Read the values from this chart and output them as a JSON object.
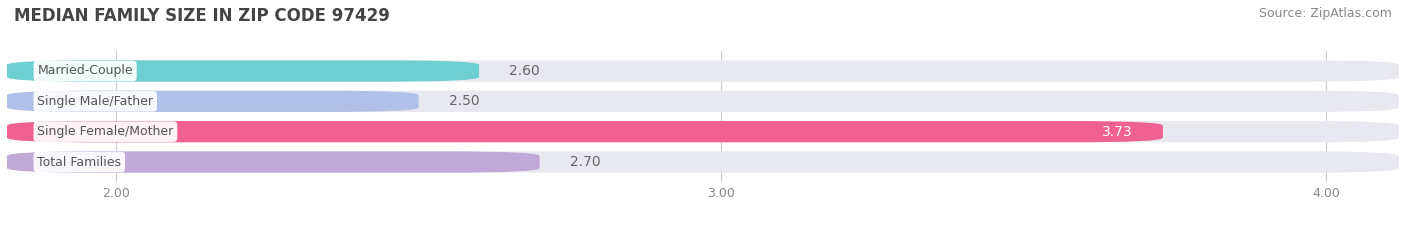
{
  "title": "MEDIAN FAMILY SIZE IN ZIP CODE 97429",
  "source": "Source: ZipAtlas.com",
  "categories": [
    "Married-Couple",
    "Single Male/Father",
    "Single Female/Mother",
    "Total Families"
  ],
  "values": [
    2.6,
    2.5,
    3.73,
    2.7
  ],
  "bar_colors": [
    "#6dcfcf",
    "#b0c0e8",
    "#f06090",
    "#c0a8d8"
  ],
  "bar_bg_color": "#e8e8f0",
  "xlim_left": 1.82,
  "xlim_right": 4.12,
  "xticks": [
    2.0,
    3.0,
    4.0
  ],
  "xtick_labels": [
    "2.00",
    "3.00",
    "4.00"
  ],
  "label_color_inside": "#ffffff",
  "label_color_outside": "#666666",
  "title_fontsize": 12,
  "source_fontsize": 9,
  "label_fontsize": 10,
  "category_fontsize": 9,
  "background_color": "#ffffff",
  "title_color": "#444444",
  "source_color": "#888888",
  "tick_color": "#888888",
  "grid_color": "#cccccc"
}
